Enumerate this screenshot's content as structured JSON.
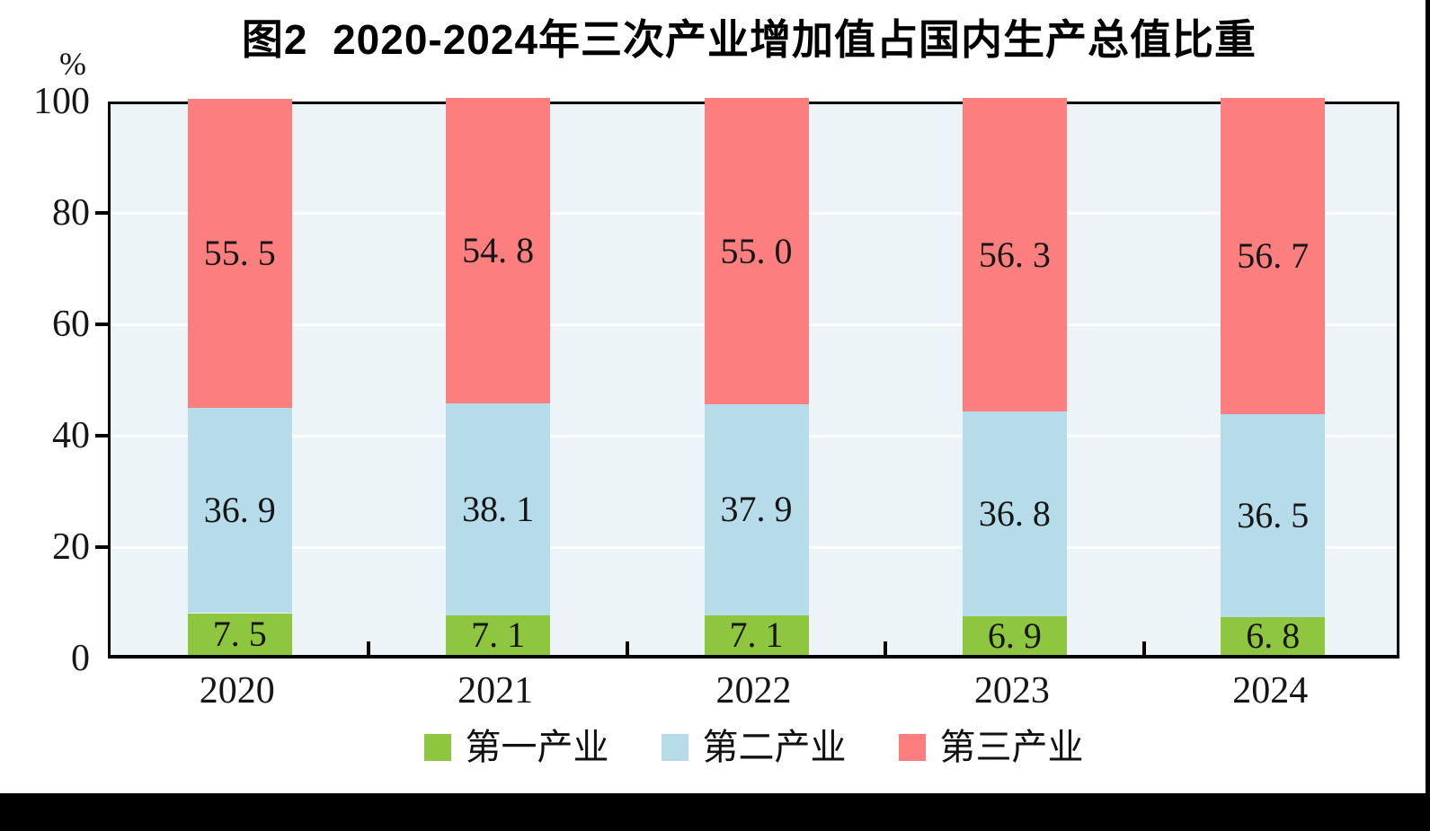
{
  "figure": {
    "title": "图2  2020-2024年三次产业增加值占国内生产总值比重",
    "y_unit_label": "%"
  },
  "colors": {
    "primary_industry": "#8ec63f",
    "secondary_industry": "#b6dcea",
    "tertiary_industry": "#fd7e7e",
    "plot_background": "#edf4f7",
    "gridline": "#ffffff",
    "axis": "#000000",
    "text": "#161616"
  },
  "chart_data": {
    "type": "bar",
    "stacked": true,
    "title": "图2  2020-2024年三次产业增加值占国内生产总值比重",
    "xlabel": "",
    "ylabel": "%",
    "ylim": [
      0,
      100
    ],
    "yticks": [
      0,
      20,
      40,
      60,
      80,
      100
    ],
    "grid": true,
    "legend_position": "bottom",
    "categories": [
      "2020",
      "2021",
      "2022",
      "2023",
      "2024"
    ],
    "series": [
      {
        "name": "第一产业",
        "color": "#8ec63f",
        "values": [
          7.5,
          7.1,
          7.1,
          6.9,
          6.8
        ]
      },
      {
        "name": "第二产业",
        "color": "#b6dcea",
        "values": [
          36.9,
          38.1,
          37.9,
          36.8,
          36.5
        ]
      },
      {
        "name": "第三产业",
        "color": "#fd7e7e",
        "values": [
          55.5,
          54.8,
          55.0,
          56.3,
          56.7
        ]
      }
    ]
  }
}
